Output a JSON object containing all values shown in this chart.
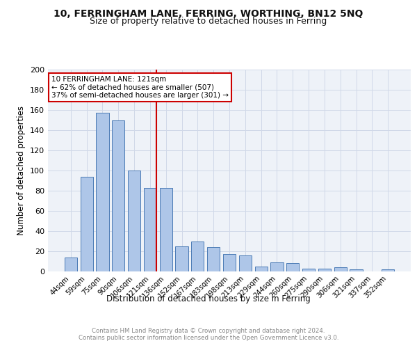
{
  "title1": "10, FERRINGHAM LANE, FERRING, WORTHING, BN12 5NQ",
  "title2": "Size of property relative to detached houses in Ferring",
  "xlabel": "Distribution of detached houses by size in Ferring",
  "ylabel": "Number of detached properties",
  "categories": [
    "44sqm",
    "59sqm",
    "75sqm",
    "90sqm",
    "106sqm",
    "121sqm",
    "136sqm",
    "152sqm",
    "167sqm",
    "183sqm",
    "198sqm",
    "213sqm",
    "229sqm",
    "244sqm",
    "260sqm",
    "275sqm",
    "290sqm",
    "306sqm",
    "321sqm",
    "337sqm",
    "352sqm"
  ],
  "values": [
    14,
    94,
    157,
    150,
    100,
    83,
    83,
    25,
    30,
    24,
    17,
    16,
    5,
    9,
    8,
    3,
    3,
    4,
    2,
    0,
    2
  ],
  "bar_color": "#aec6e8",
  "bar_edge_color": "#4a7ab5",
  "highlight_index": 5,
  "highlight_line_color": "#cc0000",
  "annotation_text": "10 FERRINGHAM LANE: 121sqm\n← 62% of detached houses are smaller (507)\n37% of semi-detached houses are larger (301) →",
  "annotation_box_color": "#ffffff",
  "annotation_box_edge": "#cc0000",
  "ylim": [
    0,
    200
  ],
  "yticks": [
    0,
    20,
    40,
    60,
    80,
    100,
    120,
    140,
    160,
    180,
    200
  ],
  "grid_color": "#d0d8e8",
  "background_color": "#eef2f8",
  "footer_text": "Contains HM Land Registry data © Crown copyright and database right 2024.\nContains public sector information licensed under the Open Government Licence v3.0.",
  "title1_fontsize": 10,
  "title2_fontsize": 9,
  "xlabel_fontsize": 8.5,
  "ylabel_fontsize": 8.5
}
